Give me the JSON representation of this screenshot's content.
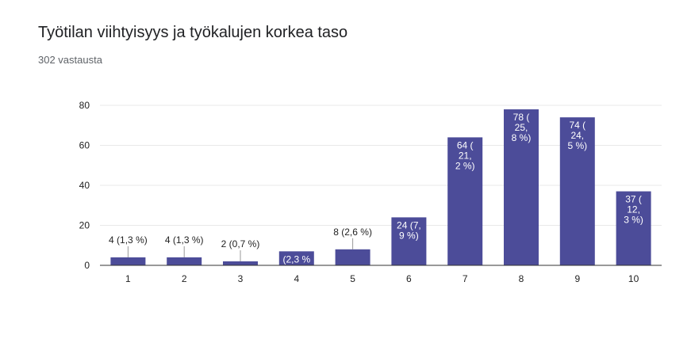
{
  "header": {
    "title": "Työtilan viihtyisyys ja työkalujen korkea taso",
    "responses": "302 vastausta"
  },
  "chart_data": {
    "type": "bar",
    "categories": [
      "1",
      "2",
      "3",
      "4",
      "5",
      "6",
      "7",
      "8",
      "9",
      "10"
    ],
    "values": [
      4,
      4,
      2,
      7,
      8,
      24,
      64,
      78,
      74,
      37
    ],
    "data_labels": [
      [
        "4 (1,3 %)"
      ],
      [
        "4 (1,3 %)"
      ],
      [
        "2 (0,7 %)"
      ],
      [
        "(2,3 %"
      ],
      [
        "8 (2,6 %)"
      ],
      [
        "24 (7,",
        "9 %)"
      ],
      [
        "64 (",
        "21,",
        "2 %)"
      ],
      [
        "78 (",
        "25,",
        "8 %)"
      ],
      [
        "74 (",
        "24,",
        "5 %)"
      ],
      [
        "37 (",
        "12,",
        "3 %)"
      ]
    ],
    "label_inside": [
      false,
      false,
      false,
      true,
      false,
      true,
      true,
      true,
      true,
      true
    ],
    "title": "",
    "xlabel": "",
    "ylabel": "",
    "ylim": [
      0,
      80
    ],
    "yticks": [
      0,
      20,
      40,
      60,
      80
    ],
    "grid": true,
    "legend": "none",
    "bar_color": "#4c4c99",
    "grid_color": "#e8e8e8",
    "axis_color": "#333333"
  }
}
